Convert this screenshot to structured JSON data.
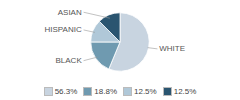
{
  "chart_data": {
    "type": "pie",
    "categories": [
      "WHITE",
      "BLACK",
      "HISPANIC",
      "ASIAN"
    ],
    "values": [
      56.3,
      18.8,
      12.5,
      12.5
    ],
    "value_labels": [
      "56.3%",
      "18.8%",
      "12.5%",
      "12.5%"
    ],
    "colors": [
      "#c8d4e0",
      "#6f9ab0",
      "#b0c8d8",
      "#2a5570"
    ],
    "legend": "bottom"
  }
}
